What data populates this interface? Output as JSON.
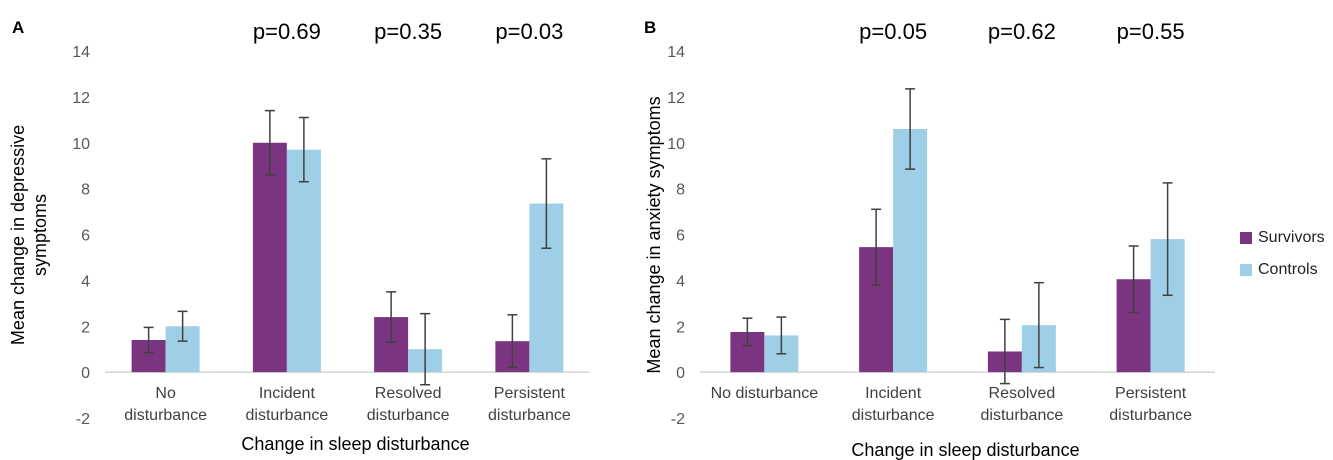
{
  "chart_data": [
    {
      "type": "bar",
      "panel_label": "A",
      "categories": [
        "No disturbance",
        "Incident disturbance",
        "Resolved disturbance",
        "Persistent disturbance"
      ],
      "category_lines": [
        [
          "No",
          "disturbance"
        ],
        [
          "Incident",
          "disturbance"
        ],
        [
          "Resolved",
          "disturbance"
        ],
        [
          "Persistent",
          "disturbance"
        ]
      ],
      "series": [
        {
          "name": "Survivors",
          "color": "#7b3580",
          "values": [
            1.4,
            10.0,
            2.4,
            1.35
          ],
          "error": [
            0.55,
            1.4,
            1.1,
            1.15
          ]
        },
        {
          "name": "Controls",
          "color": "#9ecfe6",
          "values": [
            2.0,
            9.7,
            1.0,
            7.35
          ],
          "error": [
            0.65,
            1.4,
            1.55,
            1.95
          ]
        }
      ],
      "p_values": [
        "",
        "p=0.69",
        "p=0.35",
        "p=0.03"
      ],
      "xlabel": "Change in sleep disturbance",
      "ylabel": [
        "Mean change in depressive",
        "symptoms"
      ],
      "ylim": [
        -2,
        14
      ],
      "yticks": [
        -2,
        0,
        2,
        4,
        6,
        8,
        10,
        12,
        14
      ],
      "grid": false
    },
    {
      "type": "bar",
      "panel_label": "B",
      "categories": [
        "No disturbance",
        "Incident disturbance",
        "Resolved disturbance",
        "Persistent disturbance"
      ],
      "category_lines": [
        [
          "No disturbance"
        ],
        [
          "Incident",
          "disturbance"
        ],
        [
          "Resolved",
          "disturbance"
        ],
        [
          "Persistent",
          "disturbance"
        ]
      ],
      "series": [
        {
          "name": "Survivors",
          "color": "#7b3580",
          "values": [
            1.75,
            5.45,
            0.9,
            4.05
          ],
          "error": [
            0.6,
            1.65,
            1.4,
            1.45
          ]
        },
        {
          "name": "Controls",
          "color": "#9ecfe6",
          "values": [
            1.6,
            10.6,
            2.05,
            5.8
          ],
          "error": [
            0.8,
            1.75,
            1.85,
            2.45
          ]
        }
      ],
      "p_values": [
        "",
        "p=0.05",
        "p=0.62",
        "p=0.55"
      ],
      "xlabel": "Change in sleep disturbance",
      "ylabel": [
        "Mean change in anxiety symptoms"
      ],
      "ylim": [
        -2,
        14
      ],
      "yticks": [
        -2,
        0,
        2,
        4,
        6,
        8,
        10,
        12,
        14
      ],
      "grid": false
    }
  ],
  "legend": {
    "placement": "right",
    "items": [
      {
        "label": "Survivors",
        "color": "#7b3580"
      },
      {
        "label": "Controls",
        "color": "#9ecfe6"
      }
    ]
  }
}
